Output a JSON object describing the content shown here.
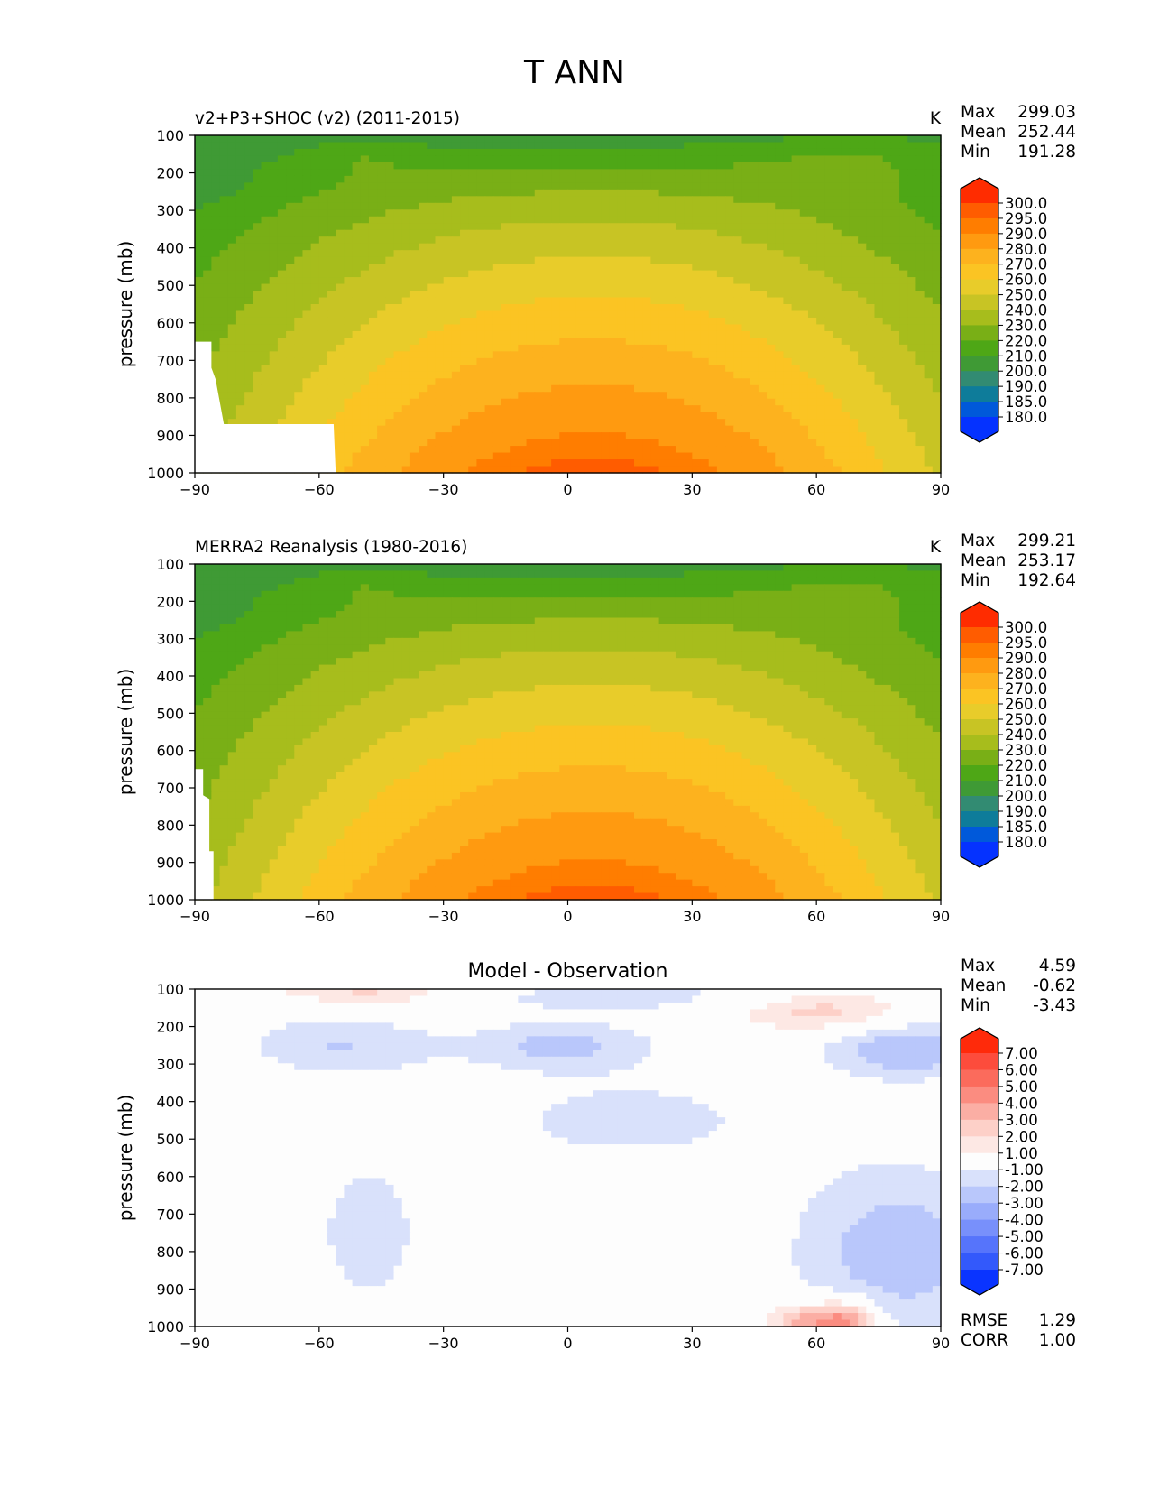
{
  "figure_title": "T ANN",
  "chart_data": [
    {
      "type": "heatmap",
      "title": "v2+P3+SHOC (v2) (2011-2015)",
      "units": "K",
      "xlabel": "",
      "ylabel": "pressure (mb)",
      "xlim": [
        -90,
        90
      ],
      "ylim": [
        1000,
        100
      ],
      "xticks": [
        -90,
        -60,
        -30,
        0,
        30,
        60,
        90
      ],
      "yticks": [
        100,
        200,
        300,
        400,
        500,
        600,
        700,
        800,
        900,
        1000
      ],
      "stats": [
        {
          "label": "Max",
          "value": "299.03"
        },
        {
          "label": "Mean",
          "value": "252.44"
        },
        {
          "label": "Min",
          "value": "191.28"
        }
      ],
      "colorbar": {
        "levels": [
          "300.0",
          "295.0",
          "290.0",
          "280.0",
          "270.0",
          "260.0",
          "250.0",
          "240.0",
          "230.0",
          "220.0",
          "210.0",
          "200.0",
          "190.0",
          "185.0",
          "180.0"
        ],
        "colors": [
          "#ff2c00",
          "#ff5c00",
          "#ff7d00",
          "#ff9a10",
          "#fdb21e",
          "#fbc423",
          "#e8cc2a",
          "#c8c424",
          "#a7bd1c",
          "#79af16",
          "#4ea716",
          "#3f9a35",
          "#328b72",
          "#0e7c9a",
          "#0059da",
          "#0532ff"
        ]
      },
      "field_model": "temperature",
      "mask": [
        [
          -90,
          650
        ],
        [
          -86,
          650
        ],
        [
          -86,
          720
        ],
        [
          -85,
          750
        ],
        [
          -84.5,
          780
        ],
        [
          -84,
          810
        ],
        [
          -83.5,
          840
        ],
        [
          -83,
          870
        ],
        [
          -56.5,
          870
        ],
        [
          -56,
          1000
        ],
        [
          -90,
          1000
        ]
      ]
    },
    {
      "type": "heatmap",
      "title": "MERRA2 Reanalysis (1980-2016)",
      "units": "K",
      "xlabel": "",
      "ylabel": "pressure (mb)",
      "xlim": [
        -90,
        90
      ],
      "ylim": [
        1000,
        100
      ],
      "xticks": [
        -90,
        -60,
        -30,
        0,
        30,
        60,
        90
      ],
      "yticks": [
        100,
        200,
        300,
        400,
        500,
        600,
        700,
        800,
        900,
        1000
      ],
      "stats": [
        {
          "label": "Max",
          "value": "299.21"
        },
        {
          "label": "Mean",
          "value": "253.17"
        },
        {
          "label": "Min",
          "value": "192.64"
        }
      ],
      "colorbar": {
        "levels": [
          "300.0",
          "295.0",
          "290.0",
          "280.0",
          "270.0",
          "260.0",
          "250.0",
          "240.0",
          "230.0",
          "220.0",
          "210.0",
          "200.0",
          "190.0",
          "185.0",
          "180.0"
        ],
        "colors": [
          "#ff2c00",
          "#ff5c00",
          "#ff7d00",
          "#ff9a10",
          "#fdb21e",
          "#fbc423",
          "#e8cc2a",
          "#c8c424",
          "#a7bd1c",
          "#79af16",
          "#4ea716",
          "#3f9a35",
          "#328b72",
          "#0e7c9a",
          "#0059da",
          "#0532ff"
        ]
      },
      "field_model": "temperature",
      "mask": [
        [
          -90,
          650
        ],
        [
          -88,
          650
        ],
        [
          -88,
          720
        ],
        [
          -86.5,
          730
        ],
        [
          -86.5,
          870
        ],
        [
          -85.5,
          870
        ],
        [
          -85.5,
          1000
        ],
        [
          -90,
          1000
        ]
      ]
    },
    {
      "type": "heatmap",
      "title": "Model - Observation",
      "units": "",
      "xlabel": "",
      "ylabel": "pressure (mb)",
      "xlim": [
        -90,
        90
      ],
      "ylim": [
        1000,
        100
      ],
      "xticks": [
        -90,
        -60,
        -30,
        0,
        30,
        60,
        90
      ],
      "yticks": [
        100,
        200,
        300,
        400,
        500,
        600,
        700,
        800,
        900,
        1000
      ],
      "stats": [
        {
          "label": "Max",
          "value": "4.59"
        },
        {
          "label": "Mean",
          "value": "-0.62"
        },
        {
          "label": "Min",
          "value": "-3.43"
        }
      ],
      "bottom_stats": [
        {
          "label": "RMSE",
          "value": "1.29"
        },
        {
          "label": "CORR",
          "value": "1.00"
        }
      ],
      "colorbar": {
        "levels": [
          "7.00",
          "6.00",
          "5.00",
          "4.00",
          "3.00",
          "2.00",
          "1.00",
          "-1.00",
          "-2.00",
          "-3.00",
          "-4.00",
          "-5.00",
          "-6.00",
          "-7.00"
        ],
        "colors": [
          "#ff2a0a",
          "#fd4c3c",
          "#fb6b5c",
          "#fb8c80",
          "#fbaea4",
          "#fdd0c8",
          "#fde8e4",
          "#fdfdfd",
          "#d9e1fb",
          "#b9c7fb",
          "#99acfb",
          "#7890fb",
          "#5674fb",
          "#3359fb",
          "#0a34ff"
        ]
      },
      "field_model": "difference",
      "mask": []
    }
  ]
}
